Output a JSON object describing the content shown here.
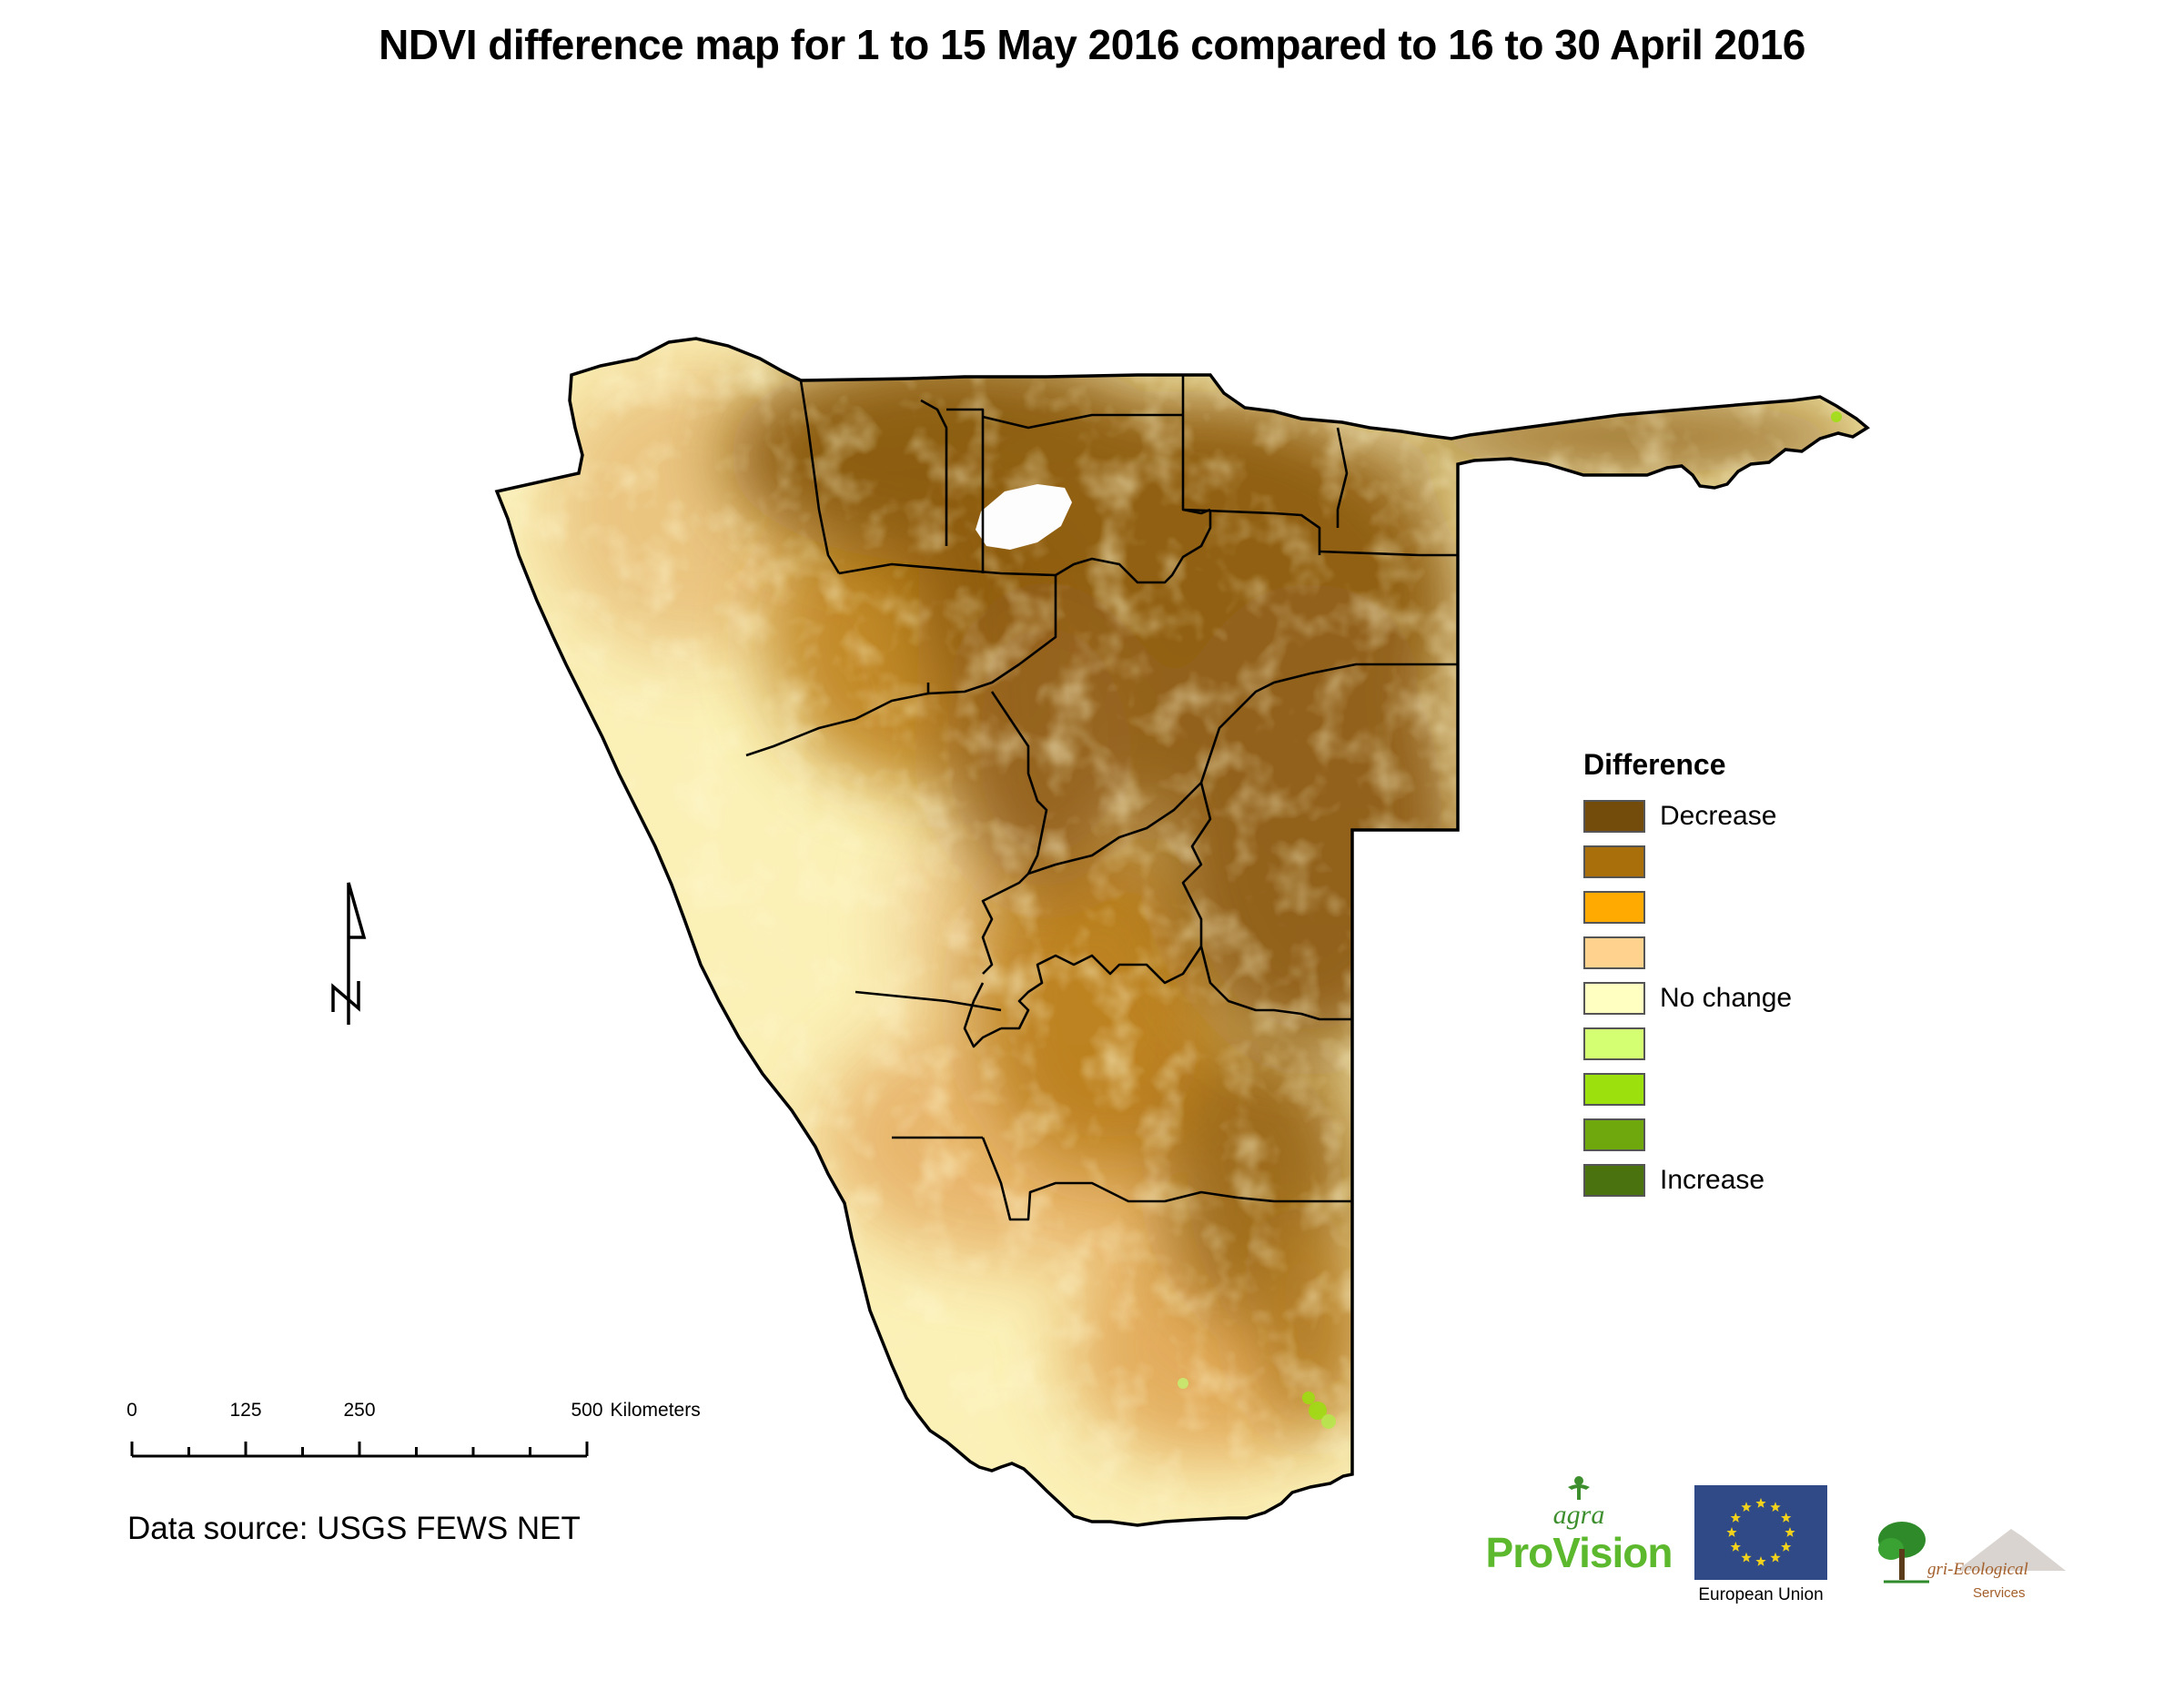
{
  "title": "NDVI difference map for 1 to 15 May 2016 compared to 16 to 30 April 2016",
  "legend": {
    "title": "Difference",
    "items": [
      {
        "label": "Decrease",
        "color": "#734c0c"
      },
      {
        "label": "",
        "color": "#a86f0a"
      },
      {
        "label": "",
        "color": "#ffaa00"
      },
      {
        "label": "",
        "color": "#ffd38e"
      },
      {
        "label": "No change",
        "color": "#ffffc2"
      },
      {
        "label": "",
        "color": "#d4ff73"
      },
      {
        "label": "",
        "color": "#9ce00e"
      },
      {
        "label": "",
        "color": "#6ea80c"
      },
      {
        "label": "Increase",
        "color": "#4a720e"
      }
    ]
  },
  "scale_bar": {
    "ticks": [
      {
        "value": 0,
        "label": "0"
      },
      {
        "value": 125,
        "label": "125"
      },
      {
        "value": 250,
        "label": "250"
      },
      {
        "value": 500,
        "label": "500"
      }
    ],
    "unit": "Kilometers",
    "max": 500
  },
  "north_arrow": {
    "icon": "north-arrow-icon",
    "letter": "N"
  },
  "data_source": "Data source: USGS FEWS NET",
  "logos": {
    "agra_provision": {
      "agra": "agra",
      "pro": "Pro",
      "vision": "Vision"
    },
    "eu": {
      "label": "European Union"
    },
    "agri_ecological": {
      "text": "gri-Ecological",
      "sub": "Services"
    }
  }
}
